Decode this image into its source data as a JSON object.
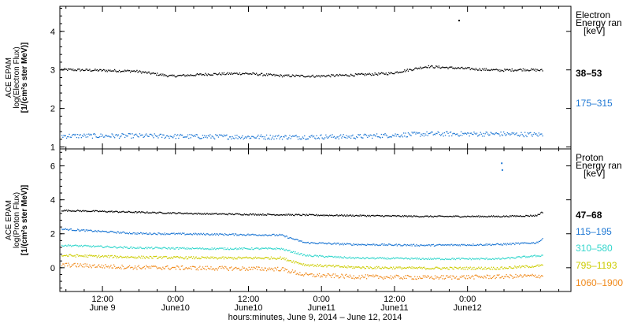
{
  "chart_data": [
    {
      "type": "scatter",
      "panel": "electron",
      "ylabel_lines": [
        "ACE EPAM",
        "log(Electron Flux)",
        "[1/(cm²s ster MeV)]"
      ],
      "ylim": [
        0.95,
        4.65
      ],
      "yticks": [
        1,
        2,
        3,
        4
      ],
      "legend_title_lines": [
        "Electron",
        "Energy ran",
        "[keV]"
      ],
      "series": [
        {
          "name": "38–53",
          "color": "#000000",
          "x_hours": [
            0,
            6,
            12,
            18,
            24,
            30,
            36,
            42,
            48,
            54,
            60,
            66,
            72,
            76,
            79
          ],
          "y": [
            3.02,
            3.0,
            2.98,
            2.85,
            2.9,
            2.92,
            2.86,
            2.85,
            2.88,
            2.92,
            3.1,
            3.05,
            3.0,
            3.02,
            3.0
          ],
          "noise": 0.03
        },
        {
          "name": "175–315",
          "color": "#1f78d4",
          "x_hours": [
            0,
            12,
            24,
            36,
            48,
            60,
            72,
            79
          ],
          "y": [
            1.3,
            1.3,
            1.28,
            1.27,
            1.28,
            1.35,
            1.35,
            1.33
          ],
          "noise": 0.06
        }
      ],
      "outliers": [
        {
          "x_hours": 65.5,
          "y": 4.3
        }
      ]
    },
    {
      "type": "scatter",
      "panel": "proton",
      "ylabel_lines": [
        "ACE EPAM",
        "log(Proton Flux)",
        "[1/(cm²s ster MeV)]"
      ],
      "ylim": [
        -1.4,
        7.0
      ],
      "yticks": [
        0,
        2,
        4,
        6
      ],
      "legend_title_lines": [
        "Proton",
        "Energy ran",
        "[keV]"
      ],
      "series": [
        {
          "name": "47–68",
          "color": "#000000",
          "x_hours": [
            0,
            12,
            24,
            36,
            48,
            60,
            72,
            78,
            79
          ],
          "y": [
            3.4,
            3.3,
            3.2,
            3.15,
            3.1,
            3.05,
            3.05,
            3.1,
            3.3
          ],
          "noise": 0.04
        },
        {
          "name": "115–195",
          "color": "#1f78d4",
          "x_hours": [
            0,
            12,
            24,
            36,
            40,
            48,
            60,
            72,
            78,
            79
          ],
          "y": [
            2.3,
            2.05,
            2.0,
            1.95,
            1.5,
            1.4,
            1.35,
            1.4,
            1.5,
            1.7
          ],
          "noise": 0.05
        },
        {
          "name": "310–580",
          "color": "#33d6cc",
          "x_hours": [
            0,
            12,
            24,
            36,
            40,
            48,
            60,
            72,
            79
          ],
          "y": [
            1.35,
            1.2,
            1.15,
            1.15,
            0.75,
            0.6,
            0.55,
            0.55,
            0.75
          ],
          "noise": 0.05
        },
        {
          "name": "795–1193",
          "color": "#cccc00",
          "x_hours": [
            0,
            12,
            24,
            36,
            40,
            48,
            60,
            72,
            79
          ],
          "y": [
            0.75,
            0.65,
            0.6,
            0.6,
            0.2,
            0.05,
            0.0,
            0.0,
            0.15
          ],
          "noise": 0.07
        },
        {
          "name": "1060–1900",
          "color": "#f08a1c",
          "x_hours": [
            0,
            12,
            24,
            36,
            40,
            48,
            60,
            72,
            79
          ],
          "y": [
            0.2,
            0.05,
            0.0,
            -0.05,
            -0.4,
            -0.5,
            -0.55,
            -0.5,
            -0.45
          ],
          "noise": 0.12
        }
      ],
      "outliers": [
        {
          "x_hours": 72.5,
          "y": 6.2
        },
        {
          "x_hours": 72.6,
          "y": 5.8
        }
      ]
    }
  ],
  "x_axis": {
    "start": "2014-06-09 05:00",
    "end": "2014-06-12 17:00",
    "tick_labels": [
      {
        "time": "12:00",
        "date": "June 9",
        "x_hours": 7
      },
      {
        "time": "0:00",
        "date": "June10",
        "x_hours": 19
      },
      {
        "time": "12:00",
        "date": "June10",
        "x_hours": 31
      },
      {
        "time": "0:00",
        "date": "June11",
        "x_hours": 43
      },
      {
        "time": "12:00",
        "date": "June11",
        "x_hours": 55
      },
      {
        "time": "0:00",
        "date": "June12",
        "x_hours": 67
      }
    ],
    "xlabel": "hours:minutes, June  9, 2014 – June 12, 2014"
  }
}
